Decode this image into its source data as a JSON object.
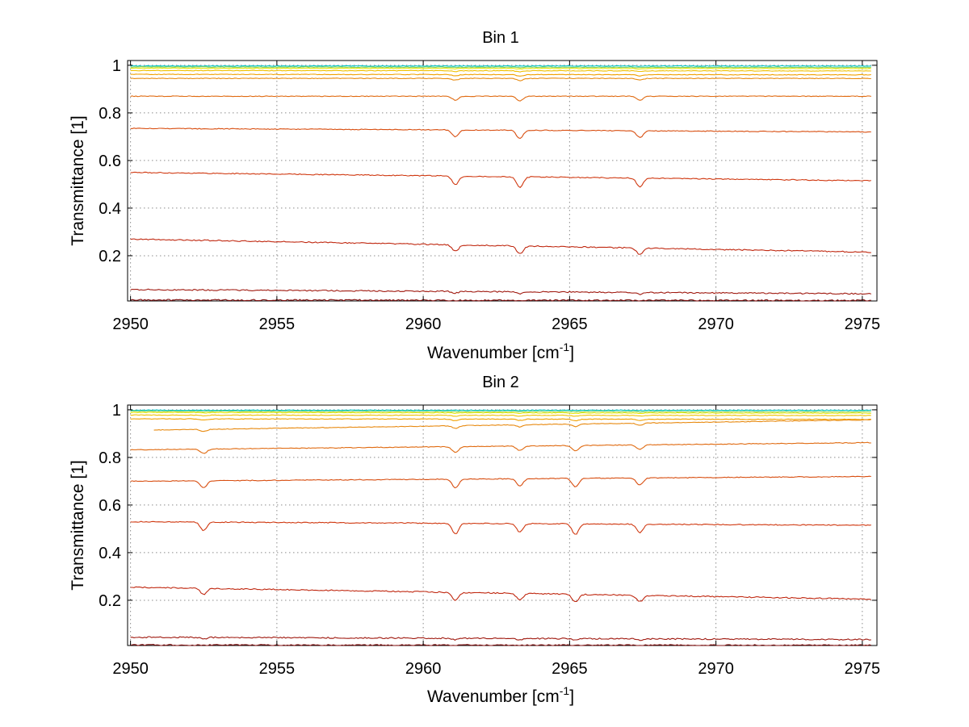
{
  "chart_data": [
    {
      "type": "line",
      "title": "Bin 1",
      "xlabel_base": "Wavenumber [cm",
      "xlabel_sup": "-1",
      "xlabel_tail": "]",
      "ylabel": "Transmittance [1]",
      "xlim": [
        2949.9,
        2975.5
      ],
      "ylim": [
        0.01,
        1.02
      ],
      "xticks": [
        2950,
        2955,
        2960,
        2965,
        2970,
        2975
      ],
      "xtick_labels": [
        "2950",
        "2955",
        "2960",
        "2965",
        "2970",
        "2975"
      ],
      "yticks": [
        0.2,
        0.4,
        0.6,
        0.8,
        1
      ],
      "ytick_labels": [
        "0.2",
        "0.4",
        "0.6",
        "0.8",
        "1"
      ],
      "grid": true,
      "absorption_lines_cm1": [
        2961.1,
        2963.3,
        2967.4
      ],
      "series": [
        {
          "x": [
            2950,
            2975.3
          ],
          "y": [
            0.997,
            0.997
          ],
          "color": "#00c8c8"
        },
        {
          "x": [
            2950,
            2975.3
          ],
          "y": [
            0.993,
            0.991
          ],
          "color": "#7fd060"
        },
        {
          "x": [
            2950,
            2975.3
          ],
          "y": [
            0.988,
            0.986
          ],
          "color": "#e6e600"
        },
        {
          "x": [
            2950,
            2975.3
          ],
          "y": [
            0.978,
            0.976
          ],
          "color": "#f0c000"
        },
        {
          "x": [
            2950,
            2975.3
          ],
          "y": [
            0.962,
            0.96
          ],
          "color": "#f0a000"
        },
        {
          "x": [
            2950,
            2975.3
          ],
          "y": [
            0.945,
            0.945
          ],
          "color": "#e88a10"
        },
        {
          "x": [
            2950,
            2975.3
          ],
          "y": [
            0.87,
            0.87
          ],
          "color": "#e06a10"
        },
        {
          "x": [
            2950,
            2975.3
          ],
          "y": [
            0.735,
            0.72
          ],
          "color": "#d84e10"
        },
        {
          "x": [
            2950,
            2975.3
          ],
          "y": [
            0.55,
            0.515
          ],
          "color": "#d03810"
        },
        {
          "x": [
            2950,
            2975.3
          ],
          "y": [
            0.27,
            0.215
          ],
          "color": "#c02810"
        },
        {
          "x": [
            2950,
            2975.3
          ],
          "y": [
            0.058,
            0.04
          ],
          "color": "#a01a10"
        },
        {
          "x": [
            2950,
            2975.3
          ],
          "y": [
            0.014,
            0.012
          ],
          "color": "#801010"
        }
      ]
    },
    {
      "type": "line",
      "title": "Bin 2",
      "xlabel_base": "Wavenumber [cm",
      "xlabel_sup": "-1",
      "xlabel_tail": "]",
      "ylabel": "Transmittance [1]",
      "xlim": [
        2949.9,
        2975.5
      ],
      "ylim": [
        0.01,
        1.02
      ],
      "xticks": [
        2950,
        2955,
        2960,
        2965,
        2970,
        2975
      ],
      "xtick_labels": [
        "2950",
        "2955",
        "2960",
        "2965",
        "2970",
        "2975"
      ],
      "yticks": [
        0.2,
        0.4,
        0.6,
        0.8,
        1
      ],
      "ytick_labels": [
        "0.2",
        "0.4",
        "0.6",
        "0.8",
        "1"
      ],
      "grid": true,
      "absorption_lines_cm1": [
        2952.5,
        2961.1,
        2963.3,
        2965.2,
        2967.4
      ],
      "series": [
        {
          "x": [
            2950,
            2975.3
          ],
          "y": [
            0.998,
            0.998
          ],
          "color": "#00c8c8"
        },
        {
          "x": [
            2950,
            2975.3
          ],
          "y": [
            0.994,
            0.992
          ],
          "color": "#7fd060"
        },
        {
          "x": [
            2950,
            2975.3
          ],
          "y": [
            0.989,
            0.986
          ],
          "color": "#e6e600"
        },
        {
          "x": [
            2950,
            2975.3
          ],
          "y": [
            0.978,
            0.976
          ],
          "color": "#f0c000"
        },
        {
          "x": [
            2950,
            2975.3
          ],
          "y": [
            0.962,
            0.96
          ],
          "color": "#f0a000"
        },
        {
          "x": [
            2950.8,
            2975.3
          ],
          "y": [
            0.915,
            0.958
          ],
          "color": "#e88a10"
        },
        {
          "x": [
            2950,
            2975.3
          ],
          "y": [
            0.832,
            0.862
          ],
          "color": "#e06a10"
        },
        {
          "x": [
            2950,
            2975.3
          ],
          "y": [
            0.7,
            0.72
          ],
          "color": "#d84e10"
        },
        {
          "x": [
            2950,
            2975.3
          ],
          "y": [
            0.53,
            0.515
          ],
          "color": "#d03810"
        },
        {
          "x": [
            2950,
            2975.3
          ],
          "y": [
            0.255,
            0.205
          ],
          "color": "#c02810"
        },
        {
          "x": [
            2950,
            2975.3
          ],
          "y": [
            0.045,
            0.035
          ],
          "color": "#a01a10"
        },
        {
          "x": [
            2950,
            2975.3
          ],
          "y": [
            0.012,
            0.011
          ],
          "color": "#801010"
        }
      ]
    }
  ]
}
